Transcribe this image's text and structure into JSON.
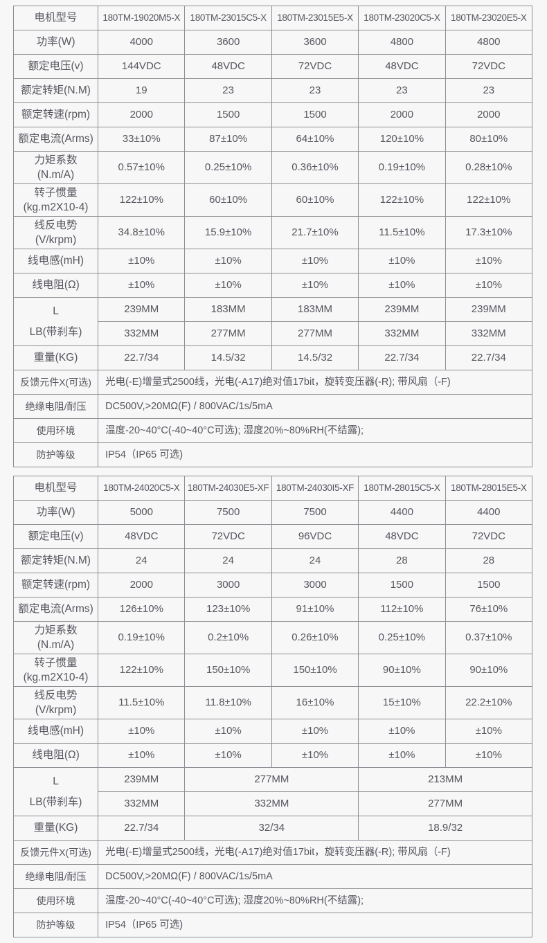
{
  "colors": {
    "background": "#f7f7f8",
    "border": "#8e8f94",
    "text": "#56565e"
  },
  "tables": [
    {
      "rows": [
        {
          "cells": [
            {
              "k": "l",
              "text": "电机型号"
            },
            {
              "k": "m",
              "text": "180TM-19020M5-X"
            },
            {
              "k": "m",
              "text": "180TM-23015C5-X"
            },
            {
              "k": "m",
              "text": "180TM-23015E5-X"
            },
            {
              "k": "m",
              "text": "180TM-23020C5-X"
            },
            {
              "k": "m",
              "text": "180TM-23020E5-X"
            }
          ]
        },
        {
          "cells": [
            {
              "k": "l",
              "text": "功率(W)"
            },
            {
              "text": "4000"
            },
            {
              "text": "3600"
            },
            {
              "text": "3600"
            },
            {
              "text": "4800"
            },
            {
              "text": "4800"
            }
          ]
        },
        {
          "cells": [
            {
              "k": "l",
              "text": "额定电压(v)"
            },
            {
              "text": "144VDC"
            },
            {
              "text": "48VDC"
            },
            {
              "text": "72VDC"
            },
            {
              "text": "48VDC"
            },
            {
              "text": "72VDC"
            }
          ]
        },
        {
          "cells": [
            {
              "k": "l",
              "text": "额定转矩(N.M)"
            },
            {
              "text": "19"
            },
            {
              "text": "23"
            },
            {
              "text": "23"
            },
            {
              "text": "23"
            },
            {
              "text": "23"
            }
          ]
        },
        {
          "cells": [
            {
              "k": "l",
              "text": "额定转速(rpm)"
            },
            {
              "text": "2000"
            },
            {
              "text": "1500"
            },
            {
              "text": "1500"
            },
            {
              "text": "2000"
            },
            {
              "text": "2000"
            }
          ]
        },
        {
          "cells": [
            {
              "k": "l",
              "text": "额定电流(Arms)"
            },
            {
              "text": "33±10%"
            },
            {
              "text": "87±10%"
            },
            {
              "text": "64±10%"
            },
            {
              "text": "120±10%"
            },
            {
              "text": "80±10%"
            }
          ]
        },
        {
          "cells": [
            {
              "k": "l2",
              "text": "力矩系数\n(N.m/A)"
            },
            {
              "text": "0.57±10%"
            },
            {
              "text": "0.25±10%"
            },
            {
              "text": "0.36±10%"
            },
            {
              "text": "0.19±10%"
            },
            {
              "text": "0.28±10%"
            }
          ]
        },
        {
          "cells": [
            {
              "k": "l2",
              "text": "转子惯量\n(kg.m2X10-4)"
            },
            {
              "text": "122±10%"
            },
            {
              "text": "60±10%"
            },
            {
              "text": "60±10%"
            },
            {
              "text": "122±10%"
            },
            {
              "text": "122±10%"
            }
          ]
        },
        {
          "cells": [
            {
              "k": "l2",
              "text": "线反电势\n(V/krpm)"
            },
            {
              "text": "34.8±10%"
            },
            {
              "text": "15.9±10%"
            },
            {
              "text": "21.7±10%"
            },
            {
              "text": "11.5±10%"
            },
            {
              "text": "17.3±10%"
            }
          ]
        },
        {
          "cells": [
            {
              "k": "l",
              "text": "线电感(mH)"
            },
            {
              "text": "±10%"
            },
            {
              "text": "±10%"
            },
            {
              "text": "±10%"
            },
            {
              "text": "±10%"
            },
            {
              "text": "±10%"
            }
          ]
        },
        {
          "cells": [
            {
              "k": "l",
              "text": "线电阻(Ω)"
            },
            {
              "text": "±10%"
            },
            {
              "text": "±10%"
            },
            {
              "text": "±10%"
            },
            {
              "text": "±10%"
            },
            {
              "text": "±10%"
            }
          ]
        },
        {
          "cells": [
            {
              "k": "lb",
              "text": "L\nLB(带刹车)",
              "rowspan": 2
            },
            {
              "text": "239MM"
            },
            {
              "text": "183MM"
            },
            {
              "text": "183MM"
            },
            {
              "text": "239MM"
            },
            {
              "text": "239MM"
            }
          ]
        },
        {
          "cells": [
            {
              "text": "332MM"
            },
            {
              "text": "277MM"
            },
            {
              "text": "277MM"
            },
            {
              "text": "332MM"
            },
            {
              "text": "332MM"
            }
          ]
        },
        {
          "cells": [
            {
              "k": "l",
              "text": "重量(KG)"
            },
            {
              "text": "22.7/34"
            },
            {
              "text": "14.5/32"
            },
            {
              "text": "14.5/32"
            },
            {
              "text": "22.7/34"
            },
            {
              "text": "22.7/34"
            }
          ]
        },
        {
          "cells": [
            {
              "k": "fl",
              "text": "反馈元件X(可选)"
            },
            {
              "k": "n",
              "text": "光电(-E)增量式2500线，光电(-A17)绝对值17bit，旋转变压器(-R); 带风扇（-F)",
              "colspan": 5
            }
          ]
        },
        {
          "cells": [
            {
              "k": "fl",
              "text": "绝缘电阻/耐压"
            },
            {
              "k": "n",
              "text": "DC500V,>20MΩ(F) / 800VAC/1s/5mA",
              "colspan": 5
            }
          ]
        },
        {
          "cells": [
            {
              "k": "fl",
              "text": "使用环境"
            },
            {
              "k": "n",
              "text": "温度-20~40°C(-40~40°C可选); 湿度20%~80%RH(不结露);",
              "colspan": 5
            }
          ]
        },
        {
          "cells": [
            {
              "k": "fl",
              "text": "防护等级"
            },
            {
              "k": "n",
              "text": "IP54（IP65 可选)",
              "colspan": 5
            }
          ]
        }
      ]
    },
    {
      "rows": [
        {
          "cells": [
            {
              "k": "l",
              "text": "电机型号"
            },
            {
              "k": "m",
              "text": "180TM-24020C5-X"
            },
            {
              "k": "m",
              "text": "180TM-24030E5-XF"
            },
            {
              "k": "m",
              "text": "180TM-24030I5-XF"
            },
            {
              "k": "m",
              "text": "180TM-28015C5-X"
            },
            {
              "k": "m",
              "text": "180TM-28015E5-X"
            }
          ]
        },
        {
          "cells": [
            {
              "k": "l",
              "text": "功率(W)"
            },
            {
              "text": "5000"
            },
            {
              "text": "7500"
            },
            {
              "text": "7500"
            },
            {
              "text": "4400"
            },
            {
              "text": "4400"
            }
          ]
        },
        {
          "cells": [
            {
              "k": "l",
              "text": "额定电压(v)"
            },
            {
              "text": "48VDC"
            },
            {
              "text": "72VDC"
            },
            {
              "text": "96VDC"
            },
            {
              "text": "48VDC"
            },
            {
              "text": "72VDC"
            }
          ]
        },
        {
          "cells": [
            {
              "k": "l",
              "text": "额定转矩(N.M)"
            },
            {
              "text": "24"
            },
            {
              "text": "24"
            },
            {
              "text": "24"
            },
            {
              "text": "28"
            },
            {
              "text": "28"
            }
          ]
        },
        {
          "cells": [
            {
              "k": "l",
              "text": "额定转速(rpm)"
            },
            {
              "text": "2000"
            },
            {
              "text": "3000"
            },
            {
              "text": "3000"
            },
            {
              "text": "1500"
            },
            {
              "text": "1500"
            }
          ]
        },
        {
          "cells": [
            {
              "k": "l",
              "text": "额定电流(Arms)"
            },
            {
              "text": "126±10%"
            },
            {
              "text": "123±10%"
            },
            {
              "text": "91±10%"
            },
            {
              "text": "112±10%"
            },
            {
              "text": "76±10%"
            }
          ]
        },
        {
          "cells": [
            {
              "k": "l2",
              "text": "力矩系数\n(N.m/A)"
            },
            {
              "text": "0.19±10%"
            },
            {
              "text": "0.2±10%"
            },
            {
              "text": "0.26±10%"
            },
            {
              "text": "0.25±10%"
            },
            {
              "text": "0.37±10%"
            }
          ]
        },
        {
          "cells": [
            {
              "k": "l2",
              "text": "转子惯量\n(kg.m2X10-4)"
            },
            {
              "text": "122±10%"
            },
            {
              "text": "150±10%"
            },
            {
              "text": "150±10%"
            },
            {
              "text": "90±10%"
            },
            {
              "text": "90±10%"
            }
          ]
        },
        {
          "cells": [
            {
              "k": "l2",
              "text": "线反电势\n(V/krpm)"
            },
            {
              "text": "11.5±10%"
            },
            {
              "text": "11.8±10%"
            },
            {
              "text": "16±10%"
            },
            {
              "text": "15±10%"
            },
            {
              "text": "22.2±10%"
            }
          ]
        },
        {
          "cells": [
            {
              "k": "l",
              "text": "线电感(mH)"
            },
            {
              "text": "±10%"
            },
            {
              "text": "±10%"
            },
            {
              "text": "±10%"
            },
            {
              "text": "±10%"
            },
            {
              "text": "±10%"
            }
          ]
        },
        {
          "cells": [
            {
              "k": "l",
              "text": "线电阻(Ω)"
            },
            {
              "text": "±10%"
            },
            {
              "text": "±10%"
            },
            {
              "text": "±10%"
            },
            {
              "text": "±10%"
            },
            {
              "text": "±10%"
            }
          ]
        },
        {
          "cells": [
            {
              "k": "lb",
              "text": "L\nLB(带刹车)",
              "rowspan": 2
            },
            {
              "text": "239MM"
            },
            {
              "text": "277MM",
              "colspan": 2
            },
            {
              "text": "213MM",
              "colspan": 2
            }
          ]
        },
        {
          "cells": [
            {
              "text": "332MM"
            },
            {
              "text": "332MM",
              "colspan": 2
            },
            {
              "text": "277MM",
              "colspan": 2
            }
          ]
        },
        {
          "cells": [
            {
              "k": "l",
              "text": "重量(KG)"
            },
            {
              "text": "22.7/34"
            },
            {
              "text": "32/34",
              "colspan": 2
            },
            {
              "text": "18.9/32",
              "colspan": 2
            }
          ]
        },
        {
          "cells": [
            {
              "k": "fl",
              "text": "反馈元件X(可选)"
            },
            {
              "k": "n",
              "text": "光电(-E)增量式2500线，光电(-A17)绝对值17bit，旋转变压器(-R); 带风扇（-F)",
              "colspan": 5
            }
          ]
        },
        {
          "cells": [
            {
              "k": "fl",
              "text": "绝缘电阻/耐压"
            },
            {
              "k": "n",
              "text": "DC500V,>20MΩ(F) / 800VAC/1s/5mA",
              "colspan": 5
            }
          ]
        },
        {
          "cells": [
            {
              "k": "fl",
              "text": "使用环境"
            },
            {
              "k": "n",
              "text": "温度-20~40°C(-40~40°C可选); 湿度20%~80%RH(不结露);",
              "colspan": 5
            }
          ]
        },
        {
          "cells": [
            {
              "k": "fl",
              "text": "防护等级"
            },
            {
              "k": "n",
              "text": "IP54（IP65 可选)",
              "colspan": 5
            }
          ]
        }
      ]
    }
  ]
}
